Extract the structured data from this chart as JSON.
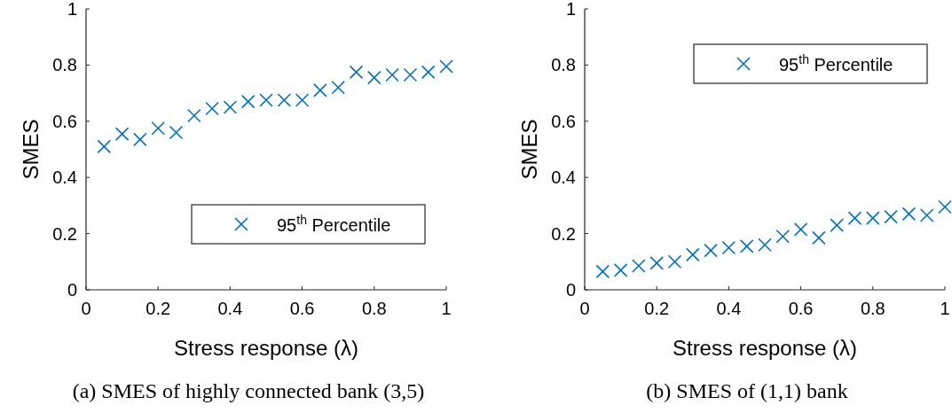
{
  "chart_data": [
    {
      "type": "scatter",
      "xlabel": "Stress response (λ)",
      "ylabel": "SMES",
      "annotations": [
        "(a) SMES of highly connected bank (3,5)"
      ],
      "marker": "cross",
      "legend": "bottom right",
      "grid": false,
      "x": [
        0.05,
        0.1,
        0.15,
        0.2,
        0.25,
        0.3,
        0.35,
        0.4,
        0.45,
        0.5,
        0.55,
        0.6,
        0.65,
        0.7,
        0.75,
        0.8,
        0.85,
        0.9,
        0.95,
        1
      ],
      "series": [
        {
          "name": "95$^{th}$ Percentile",
          "color": "#0072bd",
          "values": [
            0.51,
            0.555,
            0.535,
            0.575,
            0.56,
            0.62,
            0.645,
            0.65,
            0.67,
            0.675,
            0.675,
            0.675,
            0.71,
            0.72,
            0.775,
            0.755,
            0.765,
            0.765,
            0.775,
            0.795
          ]
        }
      ],
      "xlim": [
        0,
        1
      ],
      "xticks": [
        0,
        0.2,
        0.4,
        0.6,
        0.8,
        1
      ],
      "ylim": [
        0,
        1
      ],
      "yticks": [
        0,
        0.2,
        0.4,
        0.6,
        0.8,
        1
      ]
    },
    {
      "type": "scatter",
      "xlabel": "Stress response (λ)",
      "ylabel": "SMES",
      "annotations": [
        "(b) SMES of (1,1) bank"
      ],
      "marker": "cross",
      "legend": "top right",
      "grid": false,
      "x": [
        0.05,
        0.1,
        0.15,
        0.2,
        0.25,
        0.3,
        0.35,
        0.4,
        0.45,
        0.5,
        0.55,
        0.6,
        0.65,
        0.7,
        0.75,
        0.8,
        0.85,
        0.9,
        0.95,
        1
      ],
      "series": [
        {
          "name": "95$^{th}$ Percentile",
          "color": "#0072bd",
          "values": [
            0.065,
            0.07,
            0.085,
            0.095,
            0.1,
            0.125,
            0.14,
            0.15,
            0.155,
            0.16,
            0.19,
            0.215,
            0.185,
            0.23,
            0.255,
            0.255,
            0.26,
            0.27,
            0.265,
            0.295
          ]
        }
      ],
      "xlim": [
        0,
        1
      ],
      "xticks": [
        0,
        0.2,
        0.4,
        0.6,
        0.8,
        1
      ],
      "ylim": [
        0,
        1
      ],
      "yticks": [
        0,
        0.2,
        0.4,
        0.6,
        0.8,
        1
      ]
    }
  ]
}
